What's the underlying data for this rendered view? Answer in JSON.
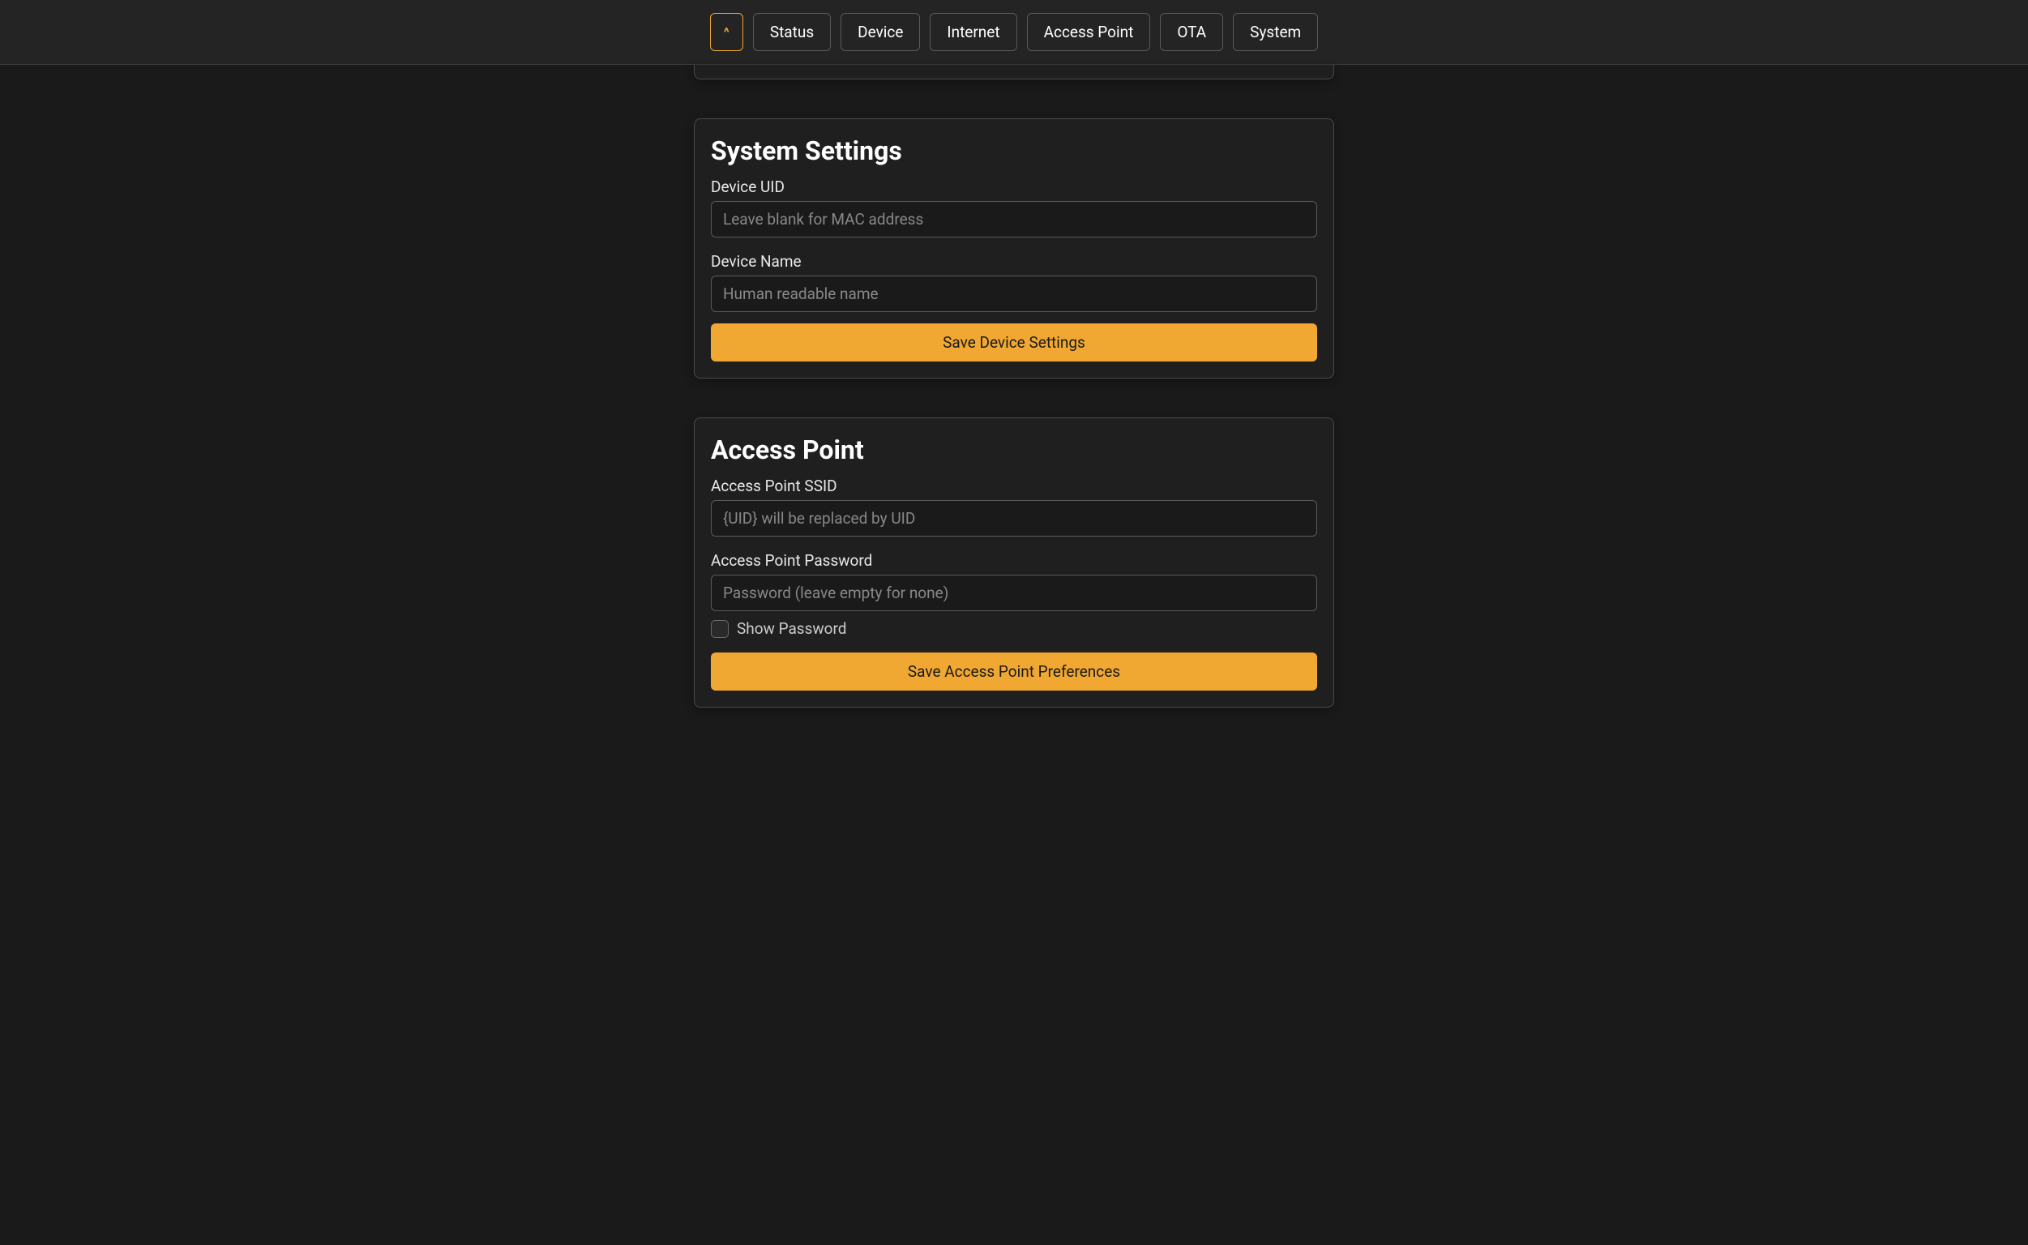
{
  "nav": {
    "collapse_icon": "^",
    "tabs": [
      "Status",
      "Device",
      "Internet",
      "Access Point",
      "OTA",
      "System"
    ]
  },
  "system_settings": {
    "title": "System Settings",
    "device_uid": {
      "label": "Device UID",
      "placeholder": "Leave blank for MAC address",
      "value": ""
    },
    "device_name": {
      "label": "Device Name",
      "placeholder": "Human readable name",
      "value": ""
    },
    "save_button": "Save Device Settings"
  },
  "access_point": {
    "title": "Access Point",
    "ssid": {
      "label": "Access Point SSID",
      "placeholder": "{UID} will be replaced by UID",
      "value": ""
    },
    "password": {
      "label": "Access Point Password",
      "placeholder": "Password (leave empty for none)",
      "value": ""
    },
    "show_password_label": "Show Password",
    "show_password_checked": false,
    "save_button": "Save Access Point Preferences"
  },
  "colors": {
    "background": "#1a1a1a",
    "nav_background": "#242424",
    "card_background": "#1f1f1f",
    "border": "#4a4a4a",
    "accent": "#f0a832",
    "text": "#ffffff",
    "placeholder": "#888888"
  }
}
